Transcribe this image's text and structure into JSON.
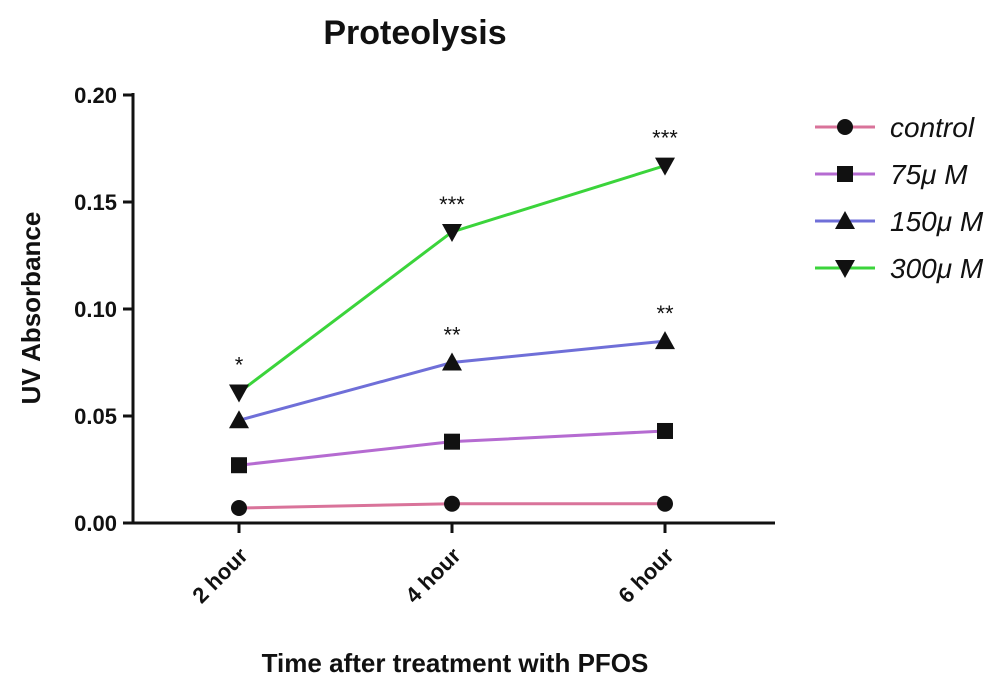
{
  "chart_data": {
    "type": "line",
    "title": "Proteolysis",
    "xlabel": "Time after treatment with PFOS",
    "ylabel": "UV Absorbance",
    "categories": [
      "2 hour",
      "4 hour",
      "6 hour"
    ],
    "ylim": [
      0,
      0.2
    ],
    "yticks": [
      "0.00",
      "0.05",
      "0.10",
      "0.15",
      "0.20"
    ],
    "grid": false,
    "legend_position": "right",
    "series": [
      {
        "name": "control",
        "marker": "circle",
        "color": "#d9739a",
        "values": [
          0.007,
          0.009,
          0.009
        ]
      },
      {
        "name": "75μ M",
        "marker": "square",
        "color": "#b56bd1",
        "values": [
          0.027,
          0.038,
          0.043
        ]
      },
      {
        "name": "150μ M",
        "marker": "triangle-up",
        "color": "#6f6fd8",
        "values": [
          0.048,
          0.075,
          0.085
        ]
      },
      {
        "name": "300μ M",
        "marker": "triangle-down",
        "color": "#3bd43b",
        "values": [
          0.061,
          0.136,
          0.167
        ]
      }
    ],
    "annotations": [
      {
        "series": "300μ M",
        "category": "2 hour",
        "text": "*"
      },
      {
        "series": "300μ M",
        "category": "4 hour",
        "text": "***"
      },
      {
        "series": "300μ M",
        "category": "6 hour",
        "text": "***"
      },
      {
        "series": "150μ M",
        "category": "4 hour",
        "text": "**"
      },
      {
        "series": "150μ M",
        "category": "6 hour",
        "text": "**"
      }
    ]
  }
}
